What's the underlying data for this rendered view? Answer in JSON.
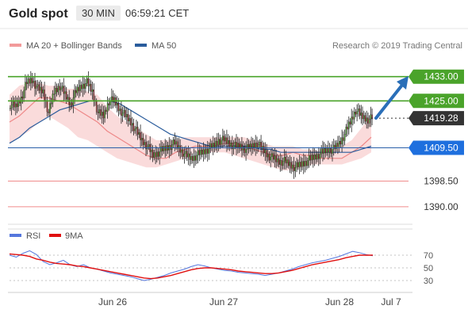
{
  "header": {
    "title": "Gold spot",
    "timeframe": "30 MIN",
    "timestamp": "06:59:21 CET"
  },
  "legend": {
    "bb_label": "MA 20 + Bollinger Bands",
    "ma50_label": "MA 50",
    "copyright": "Research © 2019 Trading Central"
  },
  "rsi_legend": {
    "rsi_label": "RSI",
    "ma_label": "9MA"
  },
  "colors": {
    "green_level": "#4aa32a",
    "blue_level": "#2a5fa8",
    "red_level": "#f08b8b",
    "band_fill": "#f9d2d2",
    "ma20": "#ee8888",
    "ma50": "#2a5c9c",
    "arrow": "#2a6fb8",
    "label_green": "#4aa32a",
    "label_dark": "#333333",
    "label_blue": "#1e6fde",
    "rsi_line": "#5577dd",
    "rsi_ma": "#e01010"
  },
  "chart_data": [
    {
      "type": "candlestick",
      "title": "Gold spot",
      "ylim": [
        1385,
        1440
      ],
      "x_labels": [
        "Jun 26",
        "Jun 27",
        "Jun 28",
        "Jul 7"
      ],
      "levels": [
        {
          "label": "1433.00",
          "value": 1433.0,
          "style": "green"
        },
        {
          "label": "1425.00",
          "value": 1425.0,
          "style": "green"
        },
        {
          "label": "1419.28",
          "value": 1419.28,
          "style": "current"
        },
        {
          "label": "1409.50",
          "value": 1409.5,
          "style": "blue"
        },
        {
          "label": "1398.50",
          "value": 1398.5,
          "style": "red"
        },
        {
          "label": "1390.00",
          "value": 1390.0,
          "style": "red"
        }
      ],
      "close_path": [
        1424,
        1423,
        1426,
        1431,
        1432,
        1429,
        1428,
        1421,
        1428,
        1430,
        1427,
        1424,
        1428,
        1430,
        1431,
        1428,
        1421,
        1420,
        1425,
        1425,
        1422,
        1420,
        1418,
        1415,
        1412,
        1410,
        1407,
        1408,
        1409,
        1410,
        1411,
        1409,
        1407,
        1406,
        1407,
        1408,
        1409,
        1410,
        1412,
        1412,
        1411,
        1410,
        1410,
        1409,
        1410,
        1411,
        1409,
        1407,
        1406,
        1405,
        1405,
        1404,
        1403,
        1404,
        1405,
        1406,
        1407,
        1408,
        1409,
        1409,
        1411,
        1414,
        1418,
        1422,
        1420,
        1419,
        1419
      ],
      "ma20": [
        1418,
        1420,
        1423,
        1426,
        1426,
        1425,
        1424,
        1422,
        1420,
        1418,
        1415,
        1413,
        1411,
        1409,
        1407,
        1406,
        1406,
        1408,
        1409,
        1410,
        1410,
        1410,
        1411,
        1411,
        1410,
        1409,
        1408,
        1407,
        1407,
        1408,
        1407,
        1407,
        1406,
        1406,
        1406,
        1408,
        1410,
        1413
      ],
      "bb_upper": [
        1427,
        1430,
        1431,
        1431,
        1430,
        1430,
        1429,
        1429,
        1428,
        1427,
        1423,
        1420,
        1418,
        1416,
        1414,
        1412,
        1412,
        1412,
        1413,
        1413,
        1413,
        1413,
        1413,
        1413,
        1413,
        1412,
        1411,
        1410,
        1410,
        1410,
        1409,
        1409,
        1408,
        1409,
        1410,
        1412,
        1416,
        1420
      ],
      "bb_lower": [
        1411,
        1413,
        1415,
        1418,
        1420,
        1418,
        1416,
        1413,
        1412,
        1410,
        1408,
        1406,
        1405,
        1404,
        1403,
        1403,
        1404,
        1405,
        1406,
        1408,
        1408,
        1408,
        1408,
        1407,
        1406,
        1405,
        1404,
        1403,
        1402,
        1402,
        1403,
        1404,
        1404,
        1404,
        1404,
        1405,
        1406,
        1408
      ],
      "ma50": [
        1411,
        1413,
        1416,
        1418,
        1420,
        1422,
        1423,
        1424,
        1425,
        1425,
        1425,
        1424,
        1422,
        1420,
        1418,
        1416,
        1414,
        1413,
        1412,
        1411,
        1410,
        1410,
        1410,
        1410,
        1410,
        1409,
        1409,
        1408,
        1408,
        1408,
        1408,
        1408,
        1408,
        1408,
        1408,
        1409,
        1410
      ]
    },
    {
      "type": "line",
      "title": "RSI",
      "ylim": [
        20,
        85
      ],
      "y_ticks": [
        30,
        50,
        70
      ],
      "series": [
        {
          "name": "RSI",
          "values": [
            70,
            67,
            73,
            77,
            71,
            60,
            55,
            58,
            62,
            55,
            52,
            55,
            50,
            48,
            45,
            42,
            40,
            38,
            36,
            33,
            30,
            32,
            35,
            38,
            42,
            45,
            48,
            52,
            55,
            53,
            50,
            48,
            46,
            45,
            43,
            42,
            41,
            40,
            38,
            40,
            42,
            45,
            48,
            52,
            55,
            58,
            60,
            62,
            65,
            68,
            72,
            76,
            74,
            71,
            69
          ]
        },
        {
          "name": "9MA",
          "values": [
            72,
            71,
            70,
            68,
            64,
            62,
            59,
            57,
            56,
            55,
            53,
            52,
            50,
            48,
            46,
            44,
            42,
            40,
            38,
            36,
            34,
            33,
            34,
            36,
            38,
            41,
            44,
            47,
            49,
            50,
            50,
            49,
            48,
            47,
            45,
            44,
            43,
            42,
            41,
            41,
            42,
            44,
            46,
            49,
            52,
            55,
            57,
            59,
            61,
            63,
            66,
            68,
            70,
            70,
            70
          ]
        }
      ]
    }
  ]
}
